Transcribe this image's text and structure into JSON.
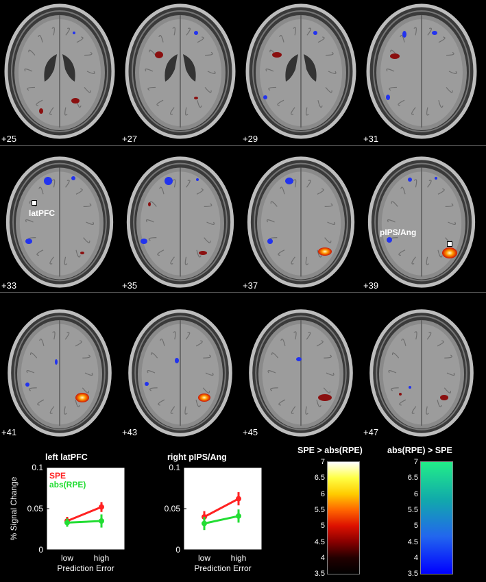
{
  "slices": [
    {
      "label": "+25"
    },
    {
      "label": "+27"
    },
    {
      "label": "+29"
    },
    {
      "label": "+31"
    },
    {
      "label": "+33",
      "callout": "latPFC"
    },
    {
      "label": "+35"
    },
    {
      "label": "+37"
    },
    {
      "label": "+39",
      "callout": "pIPS/Ang"
    },
    {
      "label": "+41"
    },
    {
      "label": "+43"
    },
    {
      "label": "+45"
    },
    {
      "label": "+47"
    }
  ],
  "chart_data": [
    {
      "type": "line",
      "title": "left latPFC",
      "xlabel": "Prediction Error",
      "ylabel": "% Signal Change",
      "categories": [
        "low",
        "high"
      ],
      "ylim": [
        0,
        0.1
      ],
      "yticks": [
        "0",
        "0.05",
        "0.1"
      ],
      "series": [
        {
          "name": "SPE",
          "color": "#ff2222",
          "values": [
            0.035,
            0.052
          ],
          "err": [
            0.005,
            0.006
          ]
        },
        {
          "name": "abs(RPE)",
          "color": "#22dd33",
          "values": [
            0.033,
            0.035
          ],
          "err": [
            0.005,
            0.008
          ]
        }
      ],
      "legend": "top-left"
    },
    {
      "type": "line",
      "title": "right pIPS/Ang",
      "xlabel": "Prediction Error",
      "ylabel": "",
      "categories": [
        "low",
        "high"
      ],
      "ylim": [
        0,
        0.1
      ],
      "yticks": [
        "0",
        "0.05",
        "0.1"
      ],
      "series": [
        {
          "name": "",
          "color": "#ff2222",
          "values": [
            0.04,
            0.062
          ],
          "err": [
            0.007,
            0.008
          ]
        },
        {
          "name": "",
          "color": "#22dd33",
          "values": [
            0.032,
            0.041
          ],
          "err": [
            0.008,
            0.008
          ]
        }
      ]
    }
  ],
  "colorbars": [
    {
      "title": "SPE > abs(RPE)",
      "ticks": [
        "7",
        "6.5",
        "6",
        "5.5",
        "5",
        "4.5",
        "4",
        "3.5"
      ],
      "stops": [
        "#ffffff",
        "#ffff44",
        "#ffcc00",
        "#ff6600",
        "#dd1100",
        "#880000",
        "#220000",
        "#000000"
      ]
    },
    {
      "title": "abs(RPE) > SPE",
      "ticks": [
        "7",
        "6.5",
        "6",
        "5.5",
        "5",
        "4.5",
        "4",
        "3.5"
      ],
      "stops": [
        "#22ee88",
        "#11aaaa",
        "#2266ee",
        "#0000ff"
      ]
    }
  ]
}
